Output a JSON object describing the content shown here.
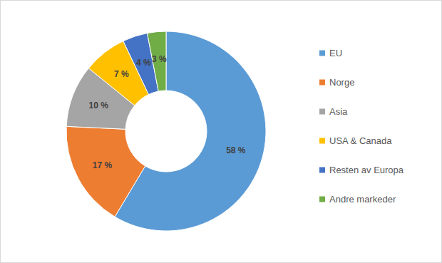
{
  "chart_data": {
    "type": "donut",
    "categories": [
      "EU",
      "Norge",
      "Asia",
      "USA & Canada",
      "Resten av Europa",
      "Andre markeder"
    ],
    "values": [
      58,
      17,
      10,
      7,
      4,
      3
    ],
    "value_labels": [
      "58 %",
      "17 %",
      "10 %",
      "7 %",
      "4 %",
      "3 %"
    ],
    "colors": [
      "#5b9bd5",
      "#ed7d31",
      "#a5a5a5",
      "#ffc000",
      "#4472c4",
      "#70ad47"
    ],
    "legend": "right",
    "data_labels": true
  }
}
